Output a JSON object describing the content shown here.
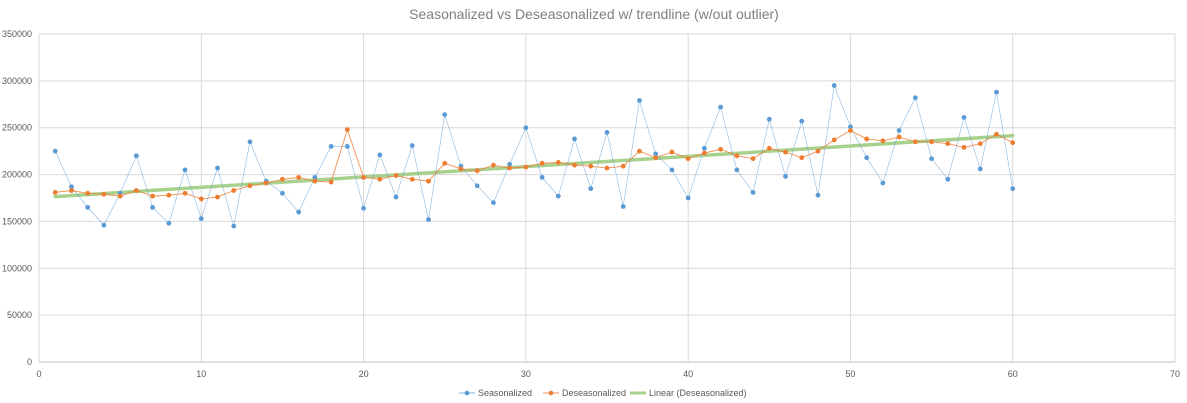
{
  "chart_data": {
    "type": "scatter",
    "title": "Seasonalized vs Deseasonalized w/ trendline (w/out outlier)",
    "xlabel": "",
    "ylabel": "",
    "xlim": [
      0,
      70
    ],
    "ylim": [
      0,
      350000
    ],
    "x_ticks": [
      0,
      10,
      20,
      30,
      40,
      50,
      60,
      70
    ],
    "y_ticks": [
      0,
      50000,
      100000,
      150000,
      200000,
      250000,
      300000,
      350000
    ],
    "grid": true,
    "legend_position": "bottom",
    "x": [
      1,
      2,
      3,
      4,
      5,
      6,
      7,
      8,
      9,
      10,
      11,
      12,
      13,
      14,
      15,
      16,
      17,
      18,
      19,
      20,
      21,
      22,
      23,
      24,
      25,
      26,
      27,
      28,
      29,
      30,
      31,
      32,
      33,
      34,
      35,
      36,
      37,
      38,
      39,
      40,
      41,
      42,
      43,
      44,
      45,
      46,
      47,
      48,
      49,
      50,
      51,
      52,
      53,
      54,
      55,
      56,
      57,
      58,
      59,
      60
    ],
    "series": [
      {
        "name": "Seasonalized",
        "color": "#5b9bd5",
        "style": "line-markers",
        "values": [
          225000,
          187000,
          165000,
          146000,
          180000,
          220000,
          165000,
          148000,
          205000,
          153000,
          207000,
          145000,
          235000,
          193000,
          180000,
          160000,
          197000,
          230000,
          230000,
          164000,
          221000,
          176000,
          231000,
          152000,
          264000,
          209000,
          188000,
          170000,
          211000,
          250000,
          197000,
          177000,
          238000,
          185000,
          245000,
          166000,
          279000,
          222000,
          205000,
          175000,
          228000,
          272000,
          205000,
          181000,
          259000,
          198000,
          257000,
          178000,
          295000,
          251000,
          218000,
          191000,
          247000,
          282000,
          217000,
          195000,
          261000,
          206000,
          288000,
          185000
        ]
      },
      {
        "name": "Deseasonalized",
        "color": "#ed7d31",
        "style": "line-markers",
        "values": [
          181000,
          183000,
          180000,
          179000,
          177000,
          183000,
          177000,
          178000,
          180000,
          174000,
          176000,
          183000,
          188000,
          191000,
          195000,
          197000,
          193000,
          192000,
          248000,
          197000,
          195000,
          199000,
          195000,
          193000,
          212000,
          206000,
          204000,
          210000,
          207000,
          208000,
          212000,
          213000,
          210000,
          209000,
          207000,
          209000,
          225000,
          218000,
          224000,
          217000,
          223000,
          227000,
          220000,
          217000,
          228000,
          224000,
          218000,
          225000,
          237000,
          247000,
          238000,
          236000,
          240000,
          235000,
          235000,
          233000,
          229000,
          233000,
          243000,
          234000
        ]
      },
      {
        "name": "Linear (Deseasonalized)",
        "color": "#a9d18e",
        "style": "trendline",
        "values": [
          176500,
          241500
        ],
        "x_range": [
          1,
          60
        ]
      }
    ]
  }
}
